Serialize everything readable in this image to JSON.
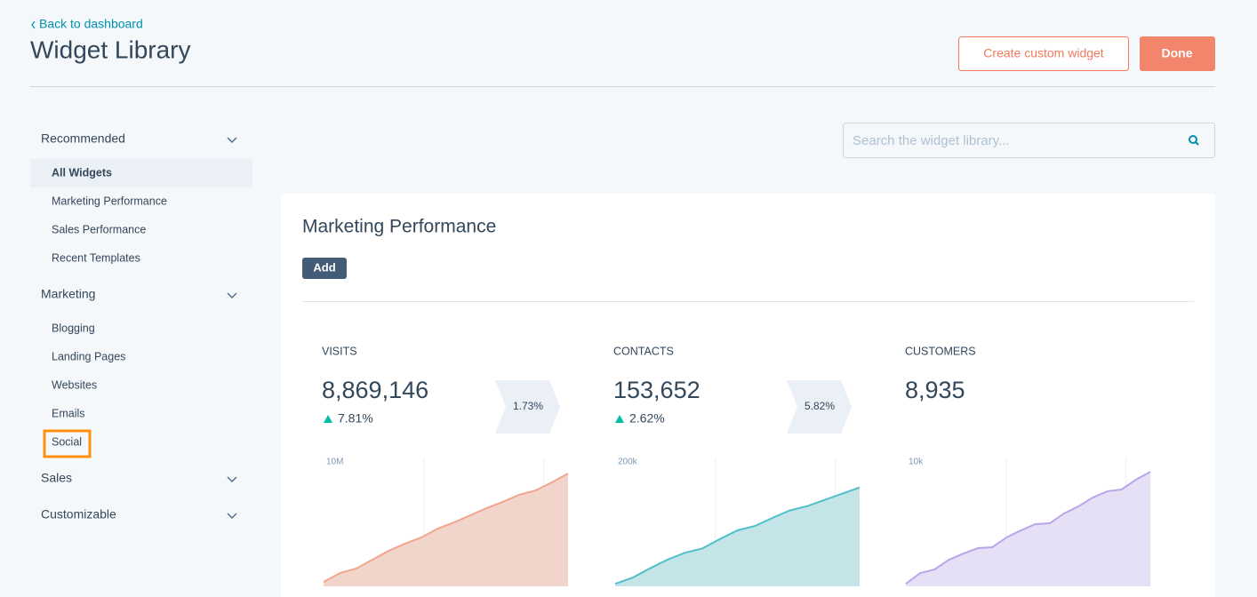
{
  "header": {
    "back_link": "Back to dashboard",
    "title": "Widget Library",
    "buttons": [
      "Create custom widget",
      "Done"
    ]
  },
  "sidebar": {
    "sections": [
      {
        "name": "Recommended",
        "items": [
          "All Widgets",
          "Marketing Performance",
          "Sales Performance",
          "Recent Templates"
        ]
      },
      {
        "name": "Marketing",
        "items": [
          "Blogging",
          "Landing Pages",
          "Websites",
          "Emails",
          "Social"
        ]
      },
      {
        "name": "Sales",
        "items": []
      },
      {
        "name": "Customizable",
        "items": []
      }
    ],
    "active": [
      0,
      0
    ],
    "highlight": [
      1,
      4
    ]
  },
  "search_placeholder": "Search the widget library...",
  "card": {
    "title": "Marketing Performance",
    "add_button": "Add",
    "metrics": [
      {
        "label": "VISITS",
        "value": "8,869,146",
        "change": "7.81%",
        "conversion": "1.73%",
        "chart": {
          "ymax": {
            "value": 10000000,
            "label": "10M"
          },
          "line_color": "#f2a58e",
          "fill_color": "#f1d5cb",
          "values": [
            360000,
            1070000,
            1430000,
            2140000,
            2860000,
            3430000,
            3930000,
            4640000,
            5140000,
            5710000,
            6290000,
            6790000,
            7360000,
            7710000,
            8360000,
            9070000
          ]
        }
      },
      {
        "label": "CONTACTS",
        "value": "153,652",
        "change": "2.62%",
        "conversion": "5.82%",
        "chart": {
          "ymax": {
            "value": 200000,
            "label": "200k"
          },
          "line_color": "#51bfc9",
          "fill_color": "#c3e5e8",
          "values": [
            4000,
            14000,
            29000,
            43000,
            54000,
            61000,
            76000,
            90000,
            97000,
            110000,
            122000,
            129000,
            139000,
            149000,
            159000
          ]
        }
      },
      {
        "label": "CUSTOMERS",
        "value": "8,935",
        "chart": {
          "ymax": {
            "value": 10000,
            "label": "10k"
          },
          "line_color": "#b9a6e6",
          "fill_color": "#e5e0f6",
          "values": [
            210,
            1070,
            1360,
            2140,
            2640,
            3070,
            3140,
            3930,
            4500,
            5000,
            5070,
            5860,
            6430,
            7140,
            7640,
            7790,
            8570,
            9210
          ]
        }
      }
    ]
  }
}
